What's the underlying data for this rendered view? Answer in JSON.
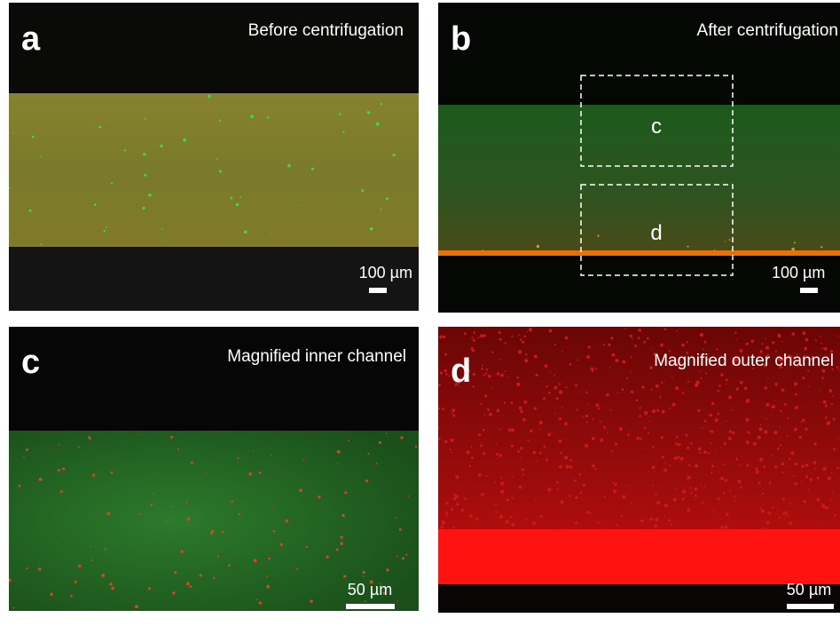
{
  "panels": [
    {
      "letter": "a",
      "caption": "Before centrifugation",
      "scale": "100 µm"
    },
    {
      "letter": "b",
      "caption": "After centrifugation",
      "scale": "100 µm",
      "regions": [
        "c",
        "d"
      ]
    },
    {
      "letter": "c",
      "caption": "Magnified inner channel",
      "scale": "50 µm"
    },
    {
      "letter": "d",
      "caption": "Magnified outer channel",
      "scale": "50 µm"
    }
  ]
}
